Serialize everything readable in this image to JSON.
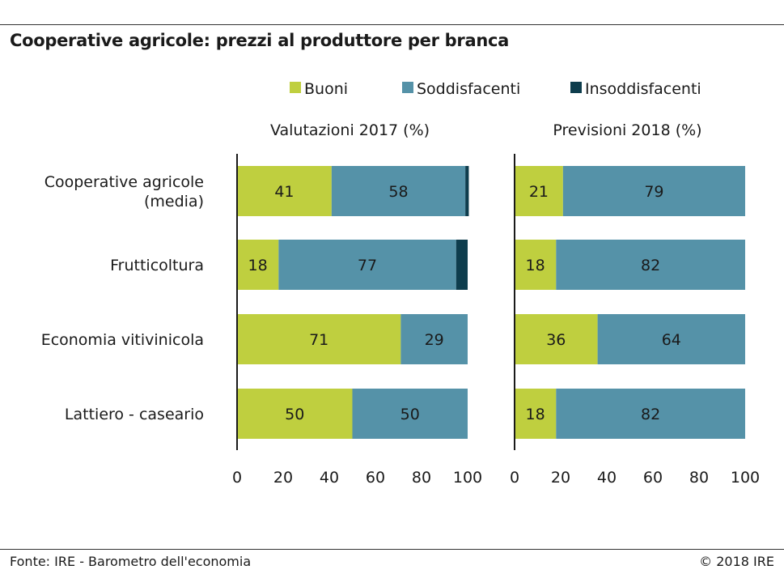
{
  "title": "Cooperative agricole: prezzi al produttore per branca",
  "footer": {
    "source": "Fonte: IRE - Barometro dell'economia",
    "copyright": "© 2018 IRE"
  },
  "colors": {
    "buoni": "#bfcf3f",
    "soddisfacenti": "#5592a8",
    "insoddisfacenti": "#0e3d4d",
    "bar_label": "#ffffff"
  },
  "chart_data": {
    "type": "bar",
    "orientation": "horizontal",
    "stacked": true,
    "legend": {
      "placement": "top",
      "entries": [
        "Buoni",
        "Soddisfacenti",
        "Insoddisfacenti"
      ]
    },
    "categories": [
      [
        "Cooperative agricole",
        "(media)"
      ],
      [
        "Frutticoltura"
      ],
      [
        "Economia vitivinicola"
      ],
      [
        "Lattiero - caseario"
      ]
    ],
    "panels": [
      {
        "title": "Valutazioni 2017 (%)",
        "xlim": [
          0,
          100
        ],
        "ticks": [
          0,
          20,
          40,
          60,
          80,
          100
        ],
        "series": [
          {
            "name": "Buoni",
            "values": [
              41,
              18,
              71,
              50
            ]
          },
          {
            "name": "Soddisfacenti",
            "values": [
              58,
              77,
              29,
              50
            ]
          },
          {
            "name": "Insoddisfacenti",
            "values": [
              1.5,
              5,
              0,
              0
            ]
          }
        ],
        "labels": {
          "Buoni": [
            "41",
            "18",
            "71",
            "50"
          ],
          "Soddisfacenti": [
            "58",
            "77",
            "29",
            "50"
          ]
        }
      },
      {
        "title": "Previsioni 2018 (%)",
        "xlim": [
          0,
          100
        ],
        "ticks": [
          0,
          20,
          40,
          60,
          80,
          100
        ],
        "series": [
          {
            "name": "Buoni",
            "values": [
              21,
              18,
              36,
              18
            ]
          },
          {
            "name": "Soddisfacenti",
            "values": [
              79,
              82,
              64,
              82
            ]
          },
          {
            "name": "Insoddisfacenti",
            "values": [
              0,
              0,
              0,
              0
            ]
          }
        ],
        "labels": {
          "Buoni": [
            "21",
            "18",
            "36",
            "18"
          ],
          "Soddisfacenti": [
            "79",
            "82",
            "64",
            "82"
          ]
        }
      }
    ]
  }
}
